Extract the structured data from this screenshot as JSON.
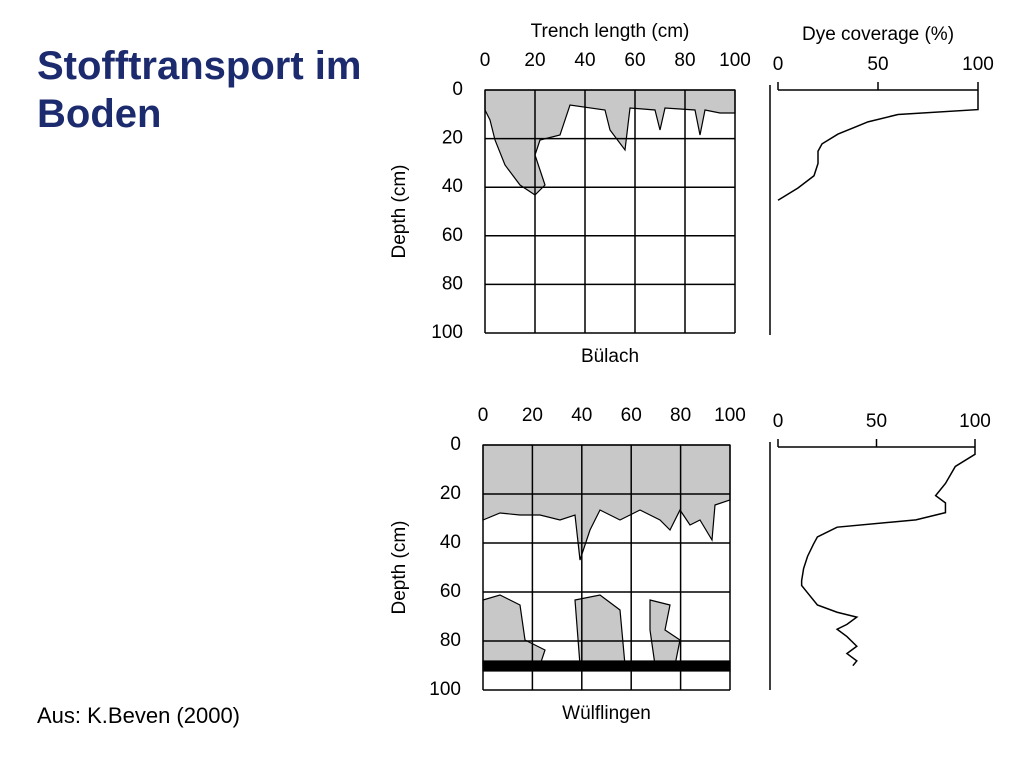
{
  "title": "Stofftransport im Boden",
  "source": "Aus: K.Beven (2000)",
  "chart_data": [
    {
      "type": "trench-map",
      "x_label": "Trench length (cm)",
      "y_label": "Depth (cm)",
      "caption": "Bülach",
      "xlim": [
        0,
        100
      ],
      "xticks": [
        0,
        20,
        40,
        60,
        80,
        100
      ],
      "ylim": [
        0,
        100
      ],
      "yticks": [
        0,
        20,
        40,
        60,
        80,
        100
      ]
    },
    {
      "type": "profile",
      "x_label": "Dye coverage (%)",
      "xlim": [
        0,
        100
      ],
      "xticks": [
        0,
        50,
        100
      ],
      "ylim": [
        0,
        100
      ],
      "depth": [
        0,
        5,
        8,
        10,
        13,
        18,
        22,
        25,
        30,
        35,
        40,
        45
      ],
      "values": [
        100,
        100,
        100,
        60,
        45,
        30,
        22,
        20,
        20,
        18,
        10,
        0
      ]
    },
    {
      "type": "trench-map",
      "y_label": "Depth (cm)",
      "caption": "Wülflingen",
      "xlim": [
        0,
        100
      ],
      "xticks": [
        0,
        20,
        40,
        60,
        80,
        100
      ],
      "ylim": [
        0,
        100
      ],
      "yticks": [
        0,
        20,
        40,
        60,
        80,
        100
      ]
    },
    {
      "type": "profile",
      "xlim": [
        0,
        100
      ],
      "xticks": [
        0,
        50,
        100
      ],
      "ylim": [
        0,
        100
      ],
      "depth": [
        0,
        3,
        8,
        15,
        20,
        23,
        27,
        30,
        33,
        37,
        40,
        45,
        50,
        55,
        57,
        60,
        65,
        68,
        70,
        73,
        75,
        78,
        82,
        85,
        88,
        90
      ],
      "values": [
        100,
        100,
        90,
        85,
        80,
        85,
        85,
        70,
        30,
        20,
        18,
        15,
        13,
        12,
        12,
        15,
        20,
        30,
        40,
        35,
        30,
        35,
        40,
        35,
        40,
        38
      ]
    }
  ]
}
